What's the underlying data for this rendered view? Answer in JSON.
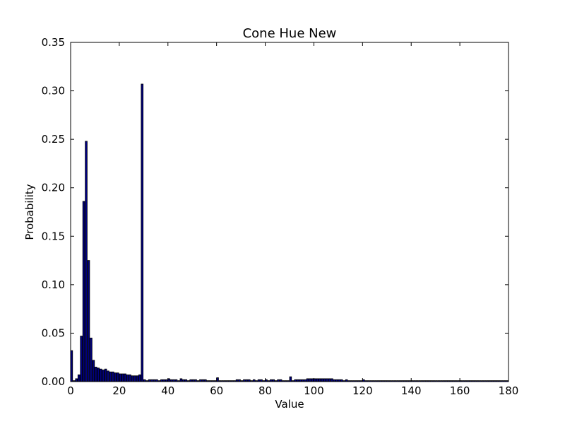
{
  "chart_data": {
    "type": "bar",
    "title": "Cone Hue New",
    "xlabel": "Value",
    "ylabel": "Probability",
    "xlim": [
      0,
      180
    ],
    "ylim": [
      0,
      0.35
    ],
    "xticks": [
      "0",
      "20",
      "40",
      "60",
      "80",
      "100",
      "120",
      "140",
      "160",
      "180"
    ],
    "yticks": [
      "0.00",
      "0.05",
      "0.10",
      "0.15",
      "0.20",
      "0.25",
      "0.30",
      "0.35"
    ],
    "grid": false,
    "bar_color": "#00007f",
    "x": [
      0,
      1,
      2,
      3,
      4,
      5,
      6,
      7,
      8,
      9,
      10,
      11,
      12,
      13,
      14,
      15,
      16,
      17,
      18,
      19,
      20,
      21,
      22,
      23,
      24,
      25,
      26,
      27,
      28,
      29,
      30,
      31,
      32,
      33,
      34,
      35,
      36,
      37,
      38,
      39,
      40,
      41,
      42,
      43,
      44,
      45,
      46,
      47,
      48,
      49,
      50,
      51,
      52,
      53,
      54,
      55,
      56,
      57,
      58,
      59,
      60,
      61,
      62,
      63,
      64,
      65,
      66,
      67,
      68,
      69,
      70,
      71,
      72,
      73,
      74,
      75,
      76,
      77,
      78,
      79,
      80,
      81,
      82,
      83,
      84,
      85,
      86,
      87,
      88,
      89,
      90,
      91,
      92,
      93,
      94,
      95,
      96,
      97,
      98,
      99,
      100,
      101,
      102,
      103,
      104,
      105,
      106,
      107,
      108,
      109,
      110,
      111,
      112,
      113,
      114,
      115,
      116,
      117,
      118,
      119,
      120,
      121,
      122,
      123,
      124,
      125,
      126,
      127,
      128,
      129,
      130,
      131,
      132,
      133,
      134,
      135,
      136,
      137,
      138,
      139,
      140,
      141,
      142,
      143,
      144,
      145,
      146,
      147,
      148,
      149,
      150,
      151,
      152,
      153,
      154,
      155,
      156,
      157,
      158,
      159,
      160,
      161,
      162,
      163,
      164,
      165,
      166,
      167,
      168,
      169,
      170,
      171,
      172,
      173,
      174,
      175,
      176,
      177,
      178,
      179
    ],
    "values": [
      0.032,
      0.001,
      0.003,
      0.007,
      0.047,
      0.186,
      0.248,
      0.125,
      0.045,
      0.022,
      0.015,
      0.014,
      0.013,
      0.012,
      0.013,
      0.011,
      0.01,
      0.01,
      0.009,
      0.009,
      0.008,
      0.008,
      0.008,
      0.007,
      0.007,
      0.006,
      0.006,
      0.006,
      0.007,
      0.307,
      0.002,
      0.001,
      0.002,
      0.002,
      0.002,
      0.002,
      0.001,
      0.002,
      0.002,
      0.002,
      0.003,
      0.002,
      0.002,
      0.002,
      0.001,
      0.003,
      0.002,
      0.002,
      0.001,
      0.002,
      0.002,
      0.002,
      0.001,
      0.002,
      0.002,
      0.002,
      0.001,
      0.001,
      0.001,
      0.001,
      0.004,
      0.001,
      0.001,
      0.001,
      0.001,
      0.001,
      0.001,
      0.001,
      0.002,
      0.002,
      0.001,
      0.002,
      0.002,
      0.002,
      0.001,
      0.002,
      0.001,
      0.002,
      0.002,
      0.001,
      0.002,
      0.001,
      0.002,
      0.002,
      0.001,
      0.002,
      0.002,
      0.001,
      0.001,
      0.001,
      0.005,
      0.001,
      0.002,
      0.002,
      0.002,
      0.002,
      0.002,
      0.003,
      0.003,
      0.003,
      0.003,
      0.003,
      0.003,
      0.003,
      0.003,
      0.003,
      0.003,
      0.003,
      0.002,
      0.002,
      0.002,
      0.002,
      0.001,
      0.002,
      0.001,
      0.001,
      0.001,
      0.001,
      0.001,
      0.001,
      0.002,
      0.001,
      0.001,
      0.001,
      0.001,
      0.001,
      0.001,
      0.001,
      0.001,
      0.001,
      0.001,
      0.001,
      0.001,
      0.001,
      0.001,
      0.001,
      0.001,
      0.001,
      0.001,
      0.001,
      0.001,
      0.001,
      0.001,
      0.001,
      0.001,
      0.001,
      0.001,
      0.001,
      0.001,
      0.001,
      0.001,
      0.001,
      0.001,
      0.001,
      0.001,
      0.001,
      0.001,
      0.001,
      0.001,
      0.001,
      0.001,
      0.001,
      0.001,
      0.001,
      0.001,
      0.001,
      0.001,
      0.001,
      0.001,
      0.001,
      0.001,
      0.001,
      0.001,
      0.001,
      0.001,
      0.001,
      0.001,
      0.001,
      0.001,
      0.001
    ]
  }
}
